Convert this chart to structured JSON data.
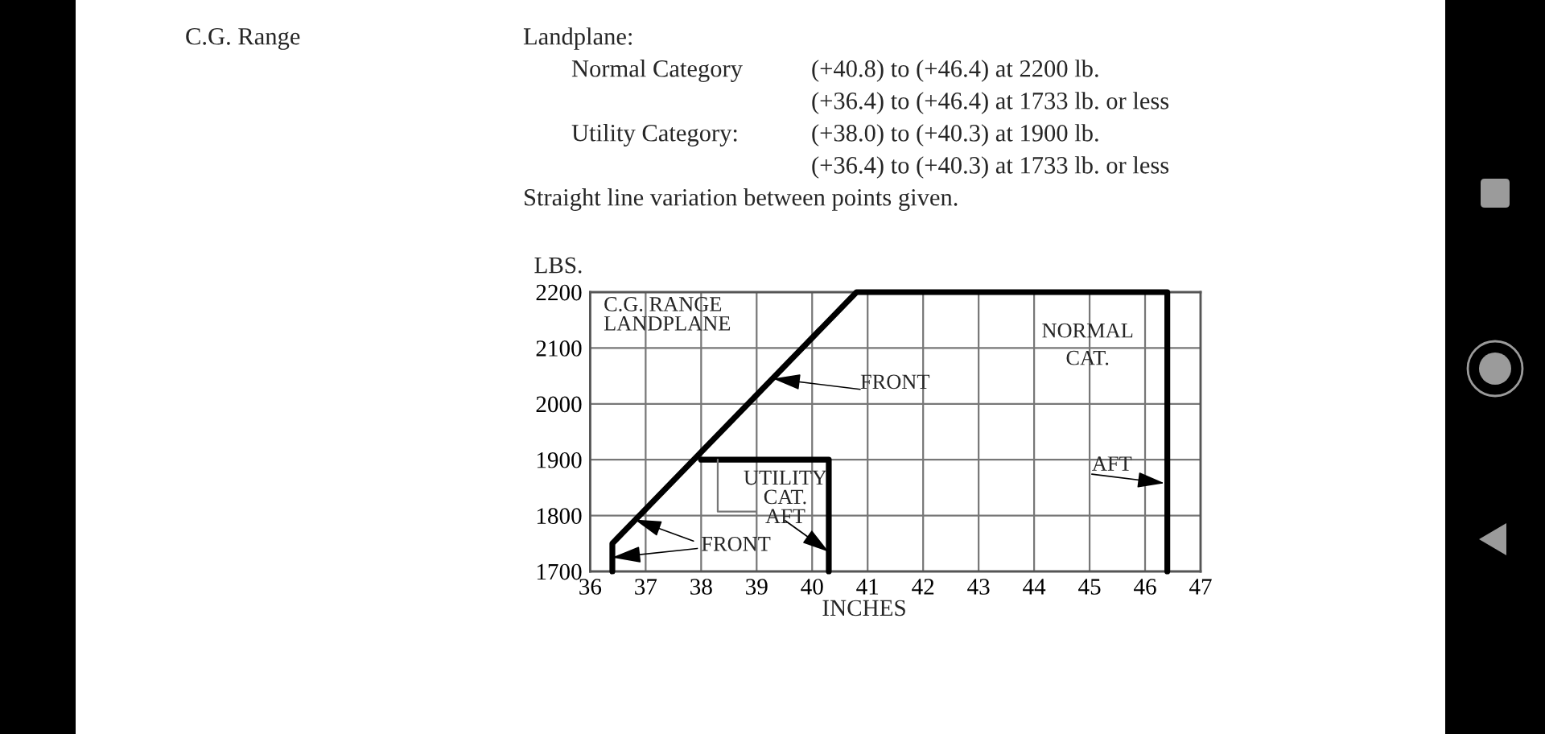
{
  "chart_data": {
    "type": "line",
    "title": "C.G. Range",
    "xlabel": "INCHES",
    "ylabel": "LBS.",
    "xlim": [
      36,
      47
    ],
    "ylim": [
      1700,
      2200
    ],
    "xticks": [
      36,
      37,
      38,
      39,
      40,
      41,
      42,
      43,
      44,
      45,
      46,
      47
    ],
    "yticks": [
      1700,
      1800,
      1900,
      2000,
      2100,
      2200
    ],
    "grid": true,
    "line_style": "solid",
    "series": [
      {
        "color": "#000000",
        "x": [
          36.4,
          36.4,
          40.8,
          46.4,
          46.4
        ],
        "values": [
          1700,
          1750,
          2200,
          2200,
          1700
        ]
      },
      {
        "color": "#000000",
        "x": [
          38.0,
          40.3,
          40.3
        ],
        "values": [
          1900,
          1900,
          1700
        ]
      }
    ],
    "annotations": [
      "Landplane:",
      "Normal Category",
      "(+40.8) to (+46.4) at 2200 lb.",
      "(+36.4) to (+46.4) at 1733 lb. or less",
      "Utility Category:",
      "(+38.0) to (+40.3) at 1900 lb.",
      "(+36.4) to (+40.3) at 1733 lb. or less",
      "Straight line variation between points given.",
      "C.G. RANGE\nLANDPLANE",
      "NORMAL\nCAT.",
      {
        "text": "FRONT",
        "x": 39.3,
        "y": 2045
      },
      {
        "text": "FRONT",
        "x": 36.8,
        "y": 1793
      },
      {
        "text": "UTILITY\nCAT.\nAFT",
        "x": 40.3,
        "y": 1735
      },
      {
        "text": "AFT",
        "x": 46.35,
        "y": 1858
      }
    ]
  }
}
